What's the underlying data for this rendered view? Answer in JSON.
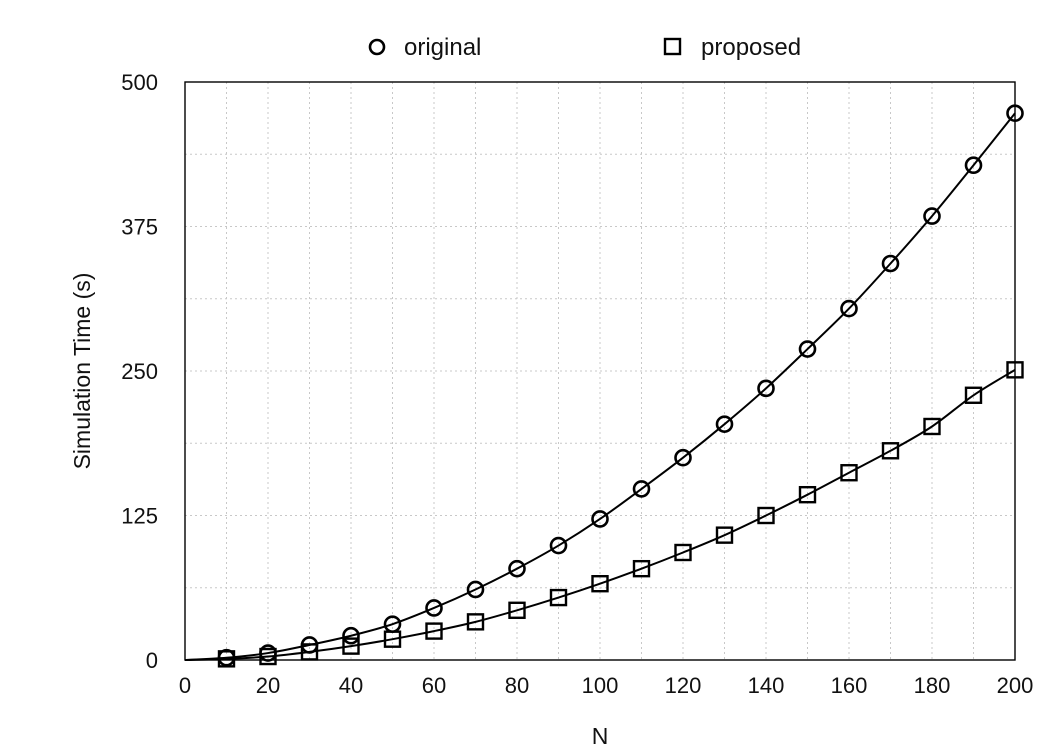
{
  "chart_data": {
    "type": "line",
    "title": "",
    "xlabel": "N",
    "ylabel": "Simulation Time (s)",
    "xlim": [
      0,
      200
    ],
    "ylim": [
      0,
      500
    ],
    "x_ticks": [
      0,
      20,
      40,
      60,
      80,
      100,
      120,
      140,
      160,
      180,
      200
    ],
    "y_ticks": [
      0,
      125,
      250,
      375,
      500
    ],
    "grid": true,
    "legend": {
      "placement": "top-center",
      "orientation": "horizontal",
      "entries": [
        {
          "label": "original",
          "marker": "circle"
        },
        {
          "label": "proposed",
          "marker": "square"
        }
      ]
    },
    "series": [
      {
        "name": "original",
        "marker": "circle",
        "line_color": "#000000",
        "x": [
          10,
          20,
          30,
          40,
          50,
          60,
          70,
          80,
          90,
          100,
          110,
          120,
          130,
          140,
          150,
          160,
          170,
          180,
          190,
          200
        ],
        "y": [
          2,
          6,
          13,
          21,
          31,
          45,
          61,
          79,
          99,
          122,
          148,
          175,
          204,
          235,
          269,
          304,
          343,
          384,
          428,
          473
        ]
      },
      {
        "name": "proposed",
        "marker": "square",
        "line_color": "#000000",
        "x": [
          10,
          20,
          30,
          40,
          50,
          60,
          70,
          80,
          90,
          100,
          110,
          120,
          130,
          140,
          150,
          160,
          170,
          180,
          190,
          200
        ],
        "y": [
          1,
          3,
          7,
          12,
          18,
          25,
          33,
          43,
          54,
          66,
          79,
          93,
          108,
          125,
          143,
          162,
          181,
          202,
          229,
          251
        ]
      }
    ]
  }
}
